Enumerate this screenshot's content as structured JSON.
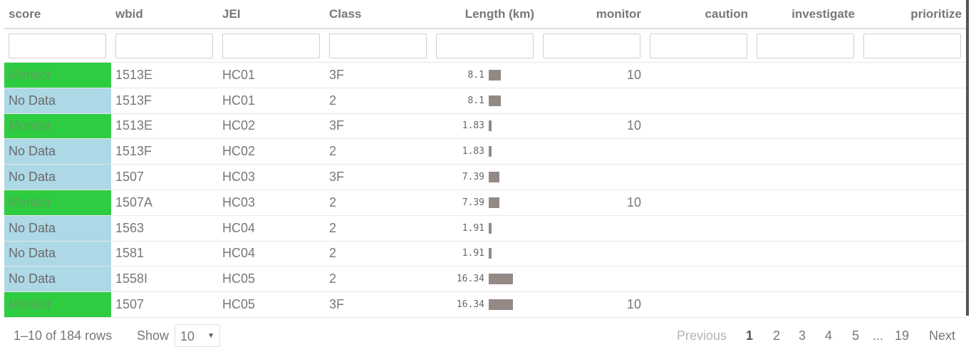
{
  "columns": {
    "score": "score",
    "wbid": "wbid",
    "jei": "JEI",
    "class": "Class",
    "length": "Length (km)",
    "monitor": "monitor",
    "caution": "caution",
    "investigate": "investigate",
    "prioritize": "prioritize"
  },
  "rows": [
    {
      "score": "Monitor",
      "wbid": "1513E",
      "jei": "HC01",
      "class": "3F",
      "length": "8.1",
      "length_value": 8.1,
      "monitor": "10",
      "caution": "",
      "investigate": "",
      "prioritize": ""
    },
    {
      "score": "No Data",
      "wbid": "1513F",
      "jei": "HC01",
      "class": "2",
      "length": "8.1",
      "length_value": 8.1,
      "monitor": "",
      "caution": "",
      "investigate": "",
      "prioritize": ""
    },
    {
      "score": "Monitor",
      "wbid": "1513E",
      "jei": "HC02",
      "class": "3F",
      "length": "1.83",
      "length_value": 1.83,
      "monitor": "10",
      "caution": "",
      "investigate": "",
      "prioritize": ""
    },
    {
      "score": "No Data",
      "wbid": "1513F",
      "jei": "HC02",
      "class": "2",
      "length": "1.83",
      "length_value": 1.83,
      "monitor": "",
      "caution": "",
      "investigate": "",
      "prioritize": ""
    },
    {
      "score": "No Data",
      "wbid": "1507",
      "jei": "HC03",
      "class": "3F",
      "length": "7.39",
      "length_value": 7.39,
      "monitor": "",
      "caution": "",
      "investigate": "",
      "prioritize": ""
    },
    {
      "score": "Monitor",
      "wbid": "1507A",
      "jei": "HC03",
      "class": "2",
      "length": "7.39",
      "length_value": 7.39,
      "monitor": "10",
      "caution": "",
      "investigate": "",
      "prioritize": ""
    },
    {
      "score": "No Data",
      "wbid": "1563",
      "jei": "HC04",
      "class": "2",
      "length": "1.91",
      "length_value": 1.91,
      "monitor": "",
      "caution": "",
      "investigate": "",
      "prioritize": ""
    },
    {
      "score": "No Data",
      "wbid": "1581",
      "jei": "HC04",
      "class": "2",
      "length": "1.91",
      "length_value": 1.91,
      "monitor": "",
      "caution": "",
      "investigate": "",
      "prioritize": ""
    },
    {
      "score": "No Data",
      "wbid": "1558I",
      "jei": "HC05",
      "class": "2",
      "length": "16.34",
      "length_value": 16.34,
      "monitor": "",
      "caution": "",
      "investigate": "",
      "prioritize": ""
    },
    {
      "score": "Monitor",
      "wbid": "1507",
      "jei": "HC05",
      "class": "3F",
      "length": "16.34",
      "length_value": 16.34,
      "monitor": "10",
      "caution": "",
      "investigate": "",
      "prioritize": ""
    }
  ],
  "score_colors": {
    "Monitor": "#2ecc40",
    "No Data": "#add8e6"
  },
  "length_bar_color": "#948985",
  "footer": {
    "rows_info": "1–10 of 184 rows",
    "show_label": "Show",
    "page_size": "10",
    "caret_icon": "caret-down-icon"
  },
  "pagination": {
    "previous": "Previous",
    "pages": [
      "1",
      "2",
      "3",
      "4",
      "5"
    ],
    "ellipsis": "...",
    "last": "19",
    "next": "Next",
    "current": "1"
  }
}
